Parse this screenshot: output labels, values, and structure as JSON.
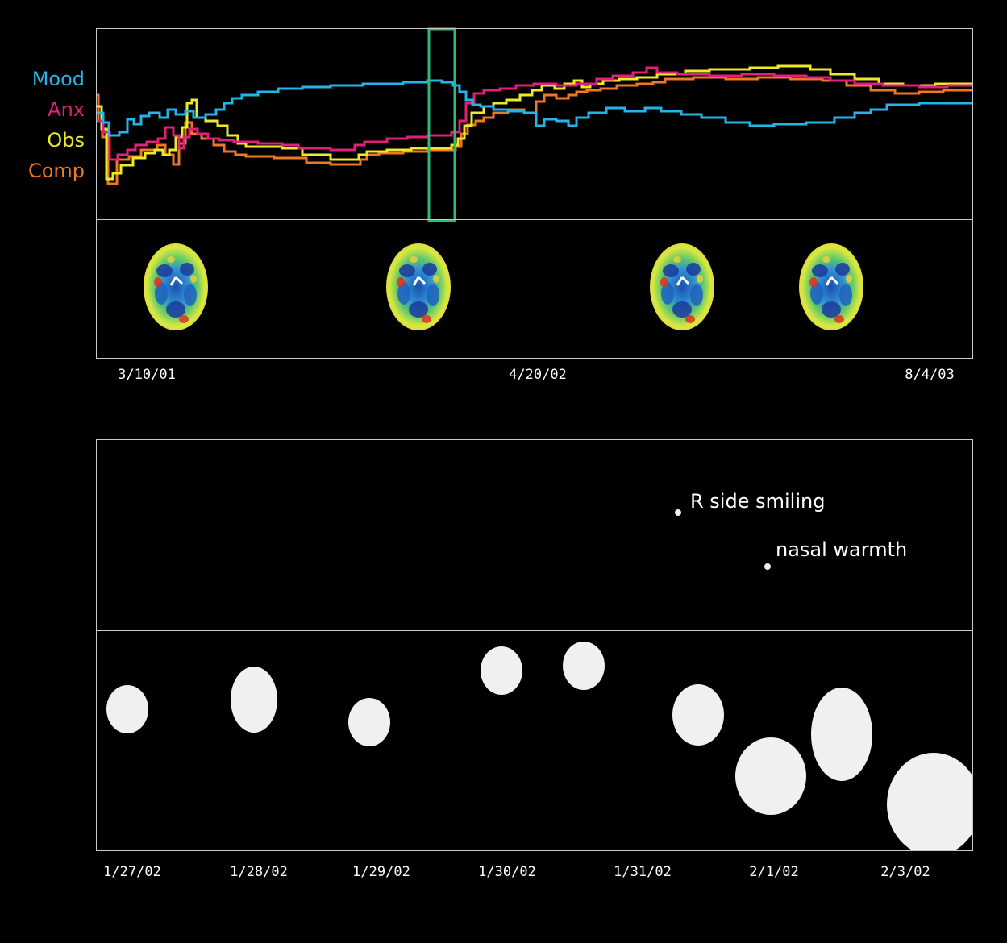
{
  "chart_data": [
    {
      "type": "line",
      "colors": {
        "background": "#000000",
        "frame": "#c8c8c8",
        "selection": "#2fb87a",
        "scan_fill": "#7fd14a"
      },
      "series": [
        {
          "name": "Mood",
          "color": "#25b4e6"
        },
        {
          "name": "Anx",
          "color": "#e0207a"
        },
        {
          "name": "Obs",
          "color": "#ece82a"
        },
        {
          "name": "Comp",
          "color": "#f07820"
        }
      ],
      "x_tick_labels": [
        "3/10/01",
        "4/20/02",
        "8/4/03"
      ],
      "brain_scans": [
        {
          "name": "brain-scan-1"
        },
        {
          "name": "brain-scan-2"
        },
        {
          "name": "brain-scan-3"
        },
        {
          "name": "brain-scan-4"
        }
      ],
      "selection_window": {
        "start_fraction": 0.38,
        "end_fraction": 0.411
      }
    },
    {
      "type": "scatter",
      "colors": {
        "dot": "#f0f0f0",
        "frame": "#c8c8c8"
      },
      "x_tick_labels": [
        "1/27/02",
        "1/28/02",
        "1/29/02",
        "1/30/02",
        "1/31/02",
        "2/1/02",
        "2/3/02"
      ],
      "annotations": [
        {
          "label": "R side smiling"
        },
        {
          "label": "nasal warmth"
        }
      ],
      "events": [
        {
          "name": "event-1"
        },
        {
          "name": "event-2"
        },
        {
          "name": "event-3"
        },
        {
          "name": "event-4"
        },
        {
          "name": "event-5"
        },
        {
          "name": "event-6"
        },
        {
          "name": "event-7"
        },
        {
          "name": "event-8"
        },
        {
          "name": "event-9"
        }
      ]
    }
  ]
}
